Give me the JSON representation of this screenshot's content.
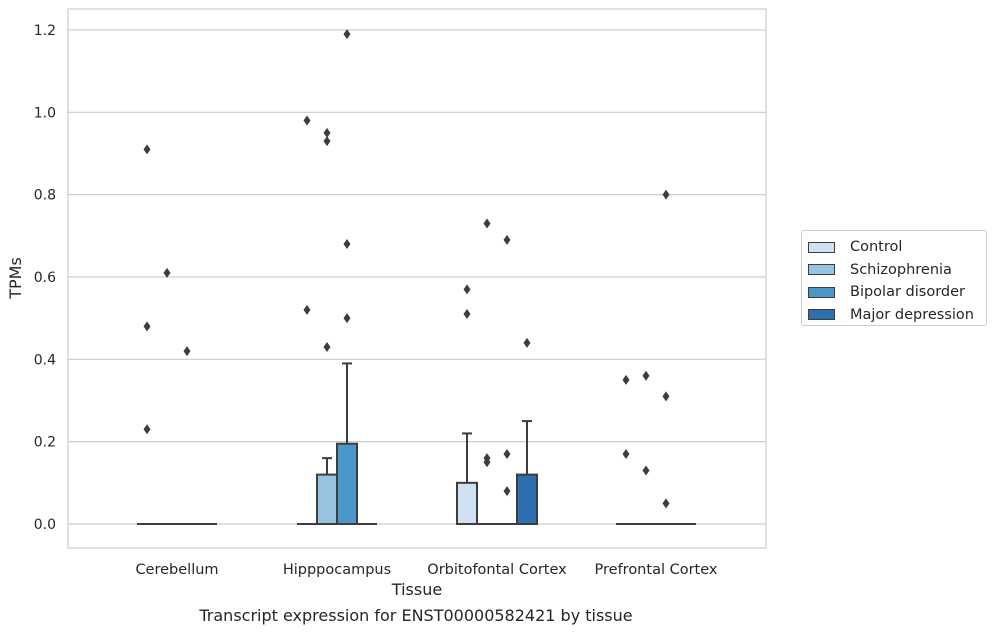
{
  "chart_data": {
    "type": "box",
    "xlabel": "Tissue",
    "ylabel": "TPMs",
    "caption": "Transcript expression for ENST00000582421 by tissue",
    "categories": [
      "Cerebellum",
      "Hipppocampus",
      "Orbitofontal Cortex",
      "Prefrontal Cortex"
    ],
    "ylim": [
      -0.06,
      1.25
    ],
    "yticks": [
      0.0,
      0.2,
      0.4,
      0.6,
      0.8,
      1.0,
      1.2
    ],
    "ytick_labels": [
      "0.0",
      "0.2",
      "0.4",
      "0.6",
      "0.8",
      "1.0",
      "1.2"
    ],
    "grid": "horizontal",
    "legend_position": "right",
    "series": [
      {
        "name": "Control",
        "color": "#d0e1f2"
      },
      {
        "name": "Schizophrenia",
        "color": "#94c4df"
      },
      {
        "name": "Bipolar disorder",
        "color": "#4a98c9"
      },
      {
        "name": "Major depression",
        "color": "#2e6fb0"
      }
    ],
    "boxes": [
      {
        "category": 0,
        "series": 0,
        "q1": 0,
        "median": 0,
        "q3": 0,
        "whisker_low": 0,
        "whisker_high": 0,
        "outliers": [
          0.91,
          0.48,
          0.23
        ]
      },
      {
        "category": 0,
        "series": 1,
        "q1": 0,
        "median": 0,
        "q3": 0,
        "whisker_low": 0,
        "whisker_high": 0,
        "outliers": [
          0.61
        ]
      },
      {
        "category": 0,
        "series": 2,
        "q1": 0,
        "median": 0,
        "q3": 0,
        "whisker_low": 0,
        "whisker_high": 0,
        "outliers": [
          0.42
        ]
      },
      {
        "category": 0,
        "series": 3,
        "q1": 0,
        "median": 0,
        "q3": 0,
        "whisker_low": 0,
        "whisker_high": 0,
        "outliers": []
      },
      {
        "category": 1,
        "series": 0,
        "q1": 0,
        "median": 0,
        "q3": 0,
        "whisker_low": 0,
        "whisker_high": 0,
        "outliers": [
          0.98,
          0.52
        ]
      },
      {
        "category": 1,
        "series": 1,
        "q1": 0,
        "median": 0,
        "q3": 0.12,
        "whisker_low": 0,
        "whisker_high": 0.16,
        "outliers": [
          0.95,
          0.93,
          0.43
        ]
      },
      {
        "category": 1,
        "series": 2,
        "q1": 0,
        "median": 0,
        "q3": 0.195,
        "whisker_low": 0,
        "whisker_high": 0.39,
        "outliers": [
          1.19,
          0.68,
          0.5
        ]
      },
      {
        "category": 1,
        "series": 3,
        "q1": 0,
        "median": 0,
        "q3": 0,
        "whisker_low": 0,
        "whisker_high": 0,
        "outliers": []
      },
      {
        "category": 2,
        "series": 0,
        "q1": 0,
        "median": 0,
        "q3": 0.1,
        "whisker_low": 0,
        "whisker_high": 0.22,
        "outliers": [
          0.57,
          0.51
        ]
      },
      {
        "category": 2,
        "series": 1,
        "q1": 0,
        "median": 0,
        "q3": 0,
        "whisker_low": 0,
        "whisker_high": 0,
        "outliers": [
          0.73,
          0.16,
          0.15
        ]
      },
      {
        "category": 2,
        "series": 2,
        "q1": 0,
        "median": 0,
        "q3": 0,
        "whisker_low": 0,
        "whisker_high": 0,
        "outliers": [
          0.69,
          0.17,
          0.08
        ]
      },
      {
        "category": 2,
        "series": 3,
        "q1": 0,
        "median": 0,
        "q3": 0.12,
        "whisker_low": 0,
        "whisker_high": 0.25,
        "outliers": [
          0.44
        ]
      },
      {
        "category": 3,
        "series": 0,
        "q1": 0,
        "median": 0,
        "q3": 0,
        "whisker_low": 0,
        "whisker_high": 0,
        "outliers": [
          0.35,
          0.17
        ]
      },
      {
        "category": 3,
        "series": 1,
        "q1": 0,
        "median": 0,
        "q3": 0,
        "whisker_low": 0,
        "whisker_high": 0,
        "outliers": [
          0.36,
          0.13
        ]
      },
      {
        "category": 3,
        "series": 2,
        "q1": 0,
        "median": 0,
        "q3": 0,
        "whisker_low": 0,
        "whisker_high": 0,
        "outliers": [
          0.8,
          0.31,
          0.05
        ]
      },
      {
        "category": 3,
        "series": 3,
        "q1": 0,
        "median": 0,
        "q3": 0,
        "whisker_low": 0,
        "whisker_high": 0,
        "outliers": []
      }
    ]
  }
}
